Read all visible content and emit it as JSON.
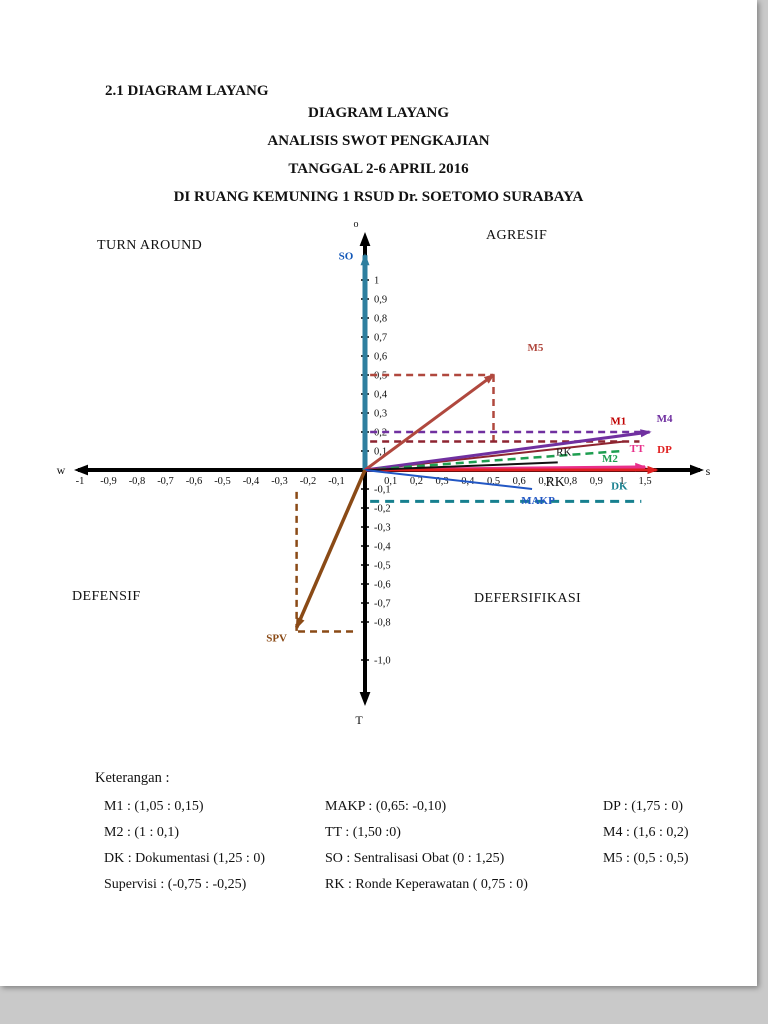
{
  "page": {
    "section_heading": "2.1 DIAGRAM LAYANG",
    "title_lines": [
      "DIAGRAM LAYANG",
      "ANALISIS SWOT PENGKAJIAN",
      "TANGGAL 2-6 APRIL 2016",
      "DI RUANG KEMUNING 1 RSUD Dr. SOETOMO SURABAYA"
    ]
  },
  "quadrants": {
    "top_left": "TURN AROUND",
    "top_right": "AGRESIF",
    "bottom_left": "DEFENSIF",
    "bottom_right": "DEFERSIFIKASI"
  },
  "chart_data": {
    "type": "scatter",
    "title": "Diagram Layang - Analisis SWOT Pengkajian",
    "x_range": [
      -1,
      1.75
    ],
    "y_range": [
      -1.0,
      1.25
    ],
    "grid": false,
    "axis_labels": {
      "top": "o",
      "bottom": "T",
      "left": "w",
      "right": "s"
    },
    "x_ticks_neg": [
      {
        "v": -1,
        "t": "-1"
      },
      {
        "v": -0.9,
        "t": "-0,9"
      },
      {
        "v": -0.8,
        "t": "-0,8"
      },
      {
        "v": -0.7,
        "t": "-0,7"
      },
      {
        "v": -0.6,
        "t": "-0,6"
      },
      {
        "v": -0.5,
        "t": "-0,5"
      },
      {
        "v": -0.4,
        "t": "-0,4"
      },
      {
        "v": -0.3,
        "t": "-0,3"
      },
      {
        "v": -0.2,
        "t": "-0,2"
      },
      {
        "v": -0.1,
        "t": "-0,1"
      }
    ],
    "x_ticks_pos": [
      {
        "v": 0.1,
        "t": "0,1"
      },
      {
        "v": 0.2,
        "t": "0,2"
      },
      {
        "v": 0.3,
        "t": "0,3"
      },
      {
        "v": 0.4,
        "t": "0,4"
      },
      {
        "v": 0.5,
        "t": "0,5"
      },
      {
        "v": 0.6,
        "t": "0,6"
      },
      {
        "v": 0.7,
        "t": "0,7"
      },
      {
        "v": 0.8,
        "t": "0,8"
      },
      {
        "v": 0.9,
        "t": "0,9"
      },
      {
        "v": 1,
        "t": "1"
      },
      {
        "v": 1.5,
        "t": "1,5"
      }
    ],
    "y_ticks_pos": [
      {
        "v": 1,
        "t": "1"
      },
      {
        "v": 0.9,
        "t": "0,9"
      },
      {
        "v": 0.8,
        "t": "0,8"
      },
      {
        "v": 0.7,
        "t": "0,7"
      },
      {
        "v": 0.6,
        "t": "0,6"
      },
      {
        "v": 0.5,
        "t": "0,5"
      },
      {
        "v": 0.4,
        "t": "0,4"
      },
      {
        "v": 0.3,
        "t": "0,3"
      },
      {
        "v": 0.2,
        "t": "0,2"
      },
      {
        "v": 0.1,
        "t": "0,1"
      }
    ],
    "y_ticks_neg": [
      {
        "v": -0.1,
        "t": "-0,1"
      },
      {
        "v": -0.2,
        "t": "-0,2"
      },
      {
        "v": -0.3,
        "t": "-0,3"
      },
      {
        "v": -0.4,
        "t": "-0,4"
      },
      {
        "v": -0.5,
        "t": "-0,5"
      },
      {
        "v": -0.6,
        "t": "-0,6"
      },
      {
        "v": -0.7,
        "t": "-0,7"
      },
      {
        "v": -0.8,
        "t": "-0,8"
      },
      {
        "v": -1.0,
        "t": "-1,0"
      }
    ],
    "points": [
      {
        "name": "M1",
        "x": 1.05,
        "y": 0.15
      },
      {
        "name": "M2",
        "x": 1.0,
        "y": 0.1
      },
      {
        "name": "DK",
        "desc": "Dokumentasi",
        "x": 1.25,
        "y": 0
      },
      {
        "name": "Supervisi",
        "x": -0.75,
        "y": -0.25
      },
      {
        "name": "MAKP",
        "x": 0.65,
        "y": -0.1
      },
      {
        "name": "TT",
        "x": 1.5,
        "y": 0
      },
      {
        "name": "SO",
        "desc": "Sentralisasi Obat",
        "x": 0,
        "y": 1.25
      },
      {
        "name": "RK",
        "desc": "Ronde Keperawatan",
        "x": 0.75,
        "y": 0
      },
      {
        "name": "DP",
        "x": 1.75,
        "y": 0
      },
      {
        "name": "M4",
        "x": 1.6,
        "y": 0.2
      },
      {
        "name": "M5",
        "x": 0.5,
        "y": 0.5
      }
    ],
    "vectors": [
      {
        "name": "SO",
        "label": "SO",
        "x": 0,
        "y": 1.13,
        "color": "#2e7f9f",
        "width": 5,
        "arrow": true,
        "head": 10,
        "label_dx": -19,
        "label_dy": 4,
        "label_color": "#1358b8",
        "projections": []
      },
      {
        "name": "M5",
        "label": "M5",
        "x": 0.5,
        "y": 0.5,
        "color": "#b0483e",
        "width": 3,
        "arrow": true,
        "label_dx": 42,
        "label_dy": -24,
        "label_color": "#b0483e",
        "projections": [
          {
            "x1": 0.02,
            "y1": 0.5,
            "x2": 0.5,
            "y2": 0.5
          },
          {
            "x1": 0.5,
            "y1": 0.5,
            "x2": 0.5,
            "y2": 0.14
          }
        ]
      },
      {
        "name": "M1",
        "label": "M1",
        "x": 1.05,
        "y": 0.15,
        "color": "#8e2430",
        "width": 2,
        "arrow": false,
        "label_dx": -6,
        "label_dy": -17,
        "label_color": "#c00000",
        "projections": [
          {
            "x1": 0.02,
            "y1": 0.15,
            "x2": 1.38,
            "y2": 0.15
          }
        ]
      },
      {
        "name": "M4",
        "label": "M4",
        "x": 1.6,
        "y": 0.2,
        "color": "#7030a0",
        "width": 3,
        "arrow": true,
        "label_dx": 15,
        "label_dy": -10,
        "label_color": "#7030a0",
        "projections": [
          {
            "x1": 0.02,
            "y1": 0.2,
            "x2": 1.45,
            "y2": 0.2
          }
        ]
      },
      {
        "name": "M2",
        "label": "M2",
        "x": 1.0,
        "y": 0.1,
        "color": "#1e9e50",
        "width": 2.5,
        "dash": "8,5",
        "arrow": false,
        "label_dx": -12,
        "label_dy": 11,
        "label_color": "#1e9e50",
        "projections": []
      },
      {
        "name": "TT",
        "label": "TT",
        "x": 1.5,
        "y": 0.015,
        "color": "#e8308a",
        "width": 3.5,
        "arrow": true,
        "label_dx": -8,
        "label_dy": -15,
        "label_color": "#e8308a",
        "projections": []
      },
      {
        "name": "DP",
        "label": "DP",
        "x": 1.75,
        "y": 0,
        "color": "#e02020",
        "width": 3,
        "arrow": true,
        "label_dx": 8,
        "label_dy": -17,
        "label_color": "#e02020",
        "projections": []
      },
      {
        "name": "RK",
        "label": "RK",
        "x": 0.75,
        "y": 0.04,
        "color": "#111111",
        "width": 2,
        "arrow": false,
        "label_bold": false,
        "label_dx": 6,
        "label_dy": -7,
        "label_color": "#111111",
        "projections": []
      },
      {
        "name": "DK",
        "label": "DK",
        "x1": 0.02,
        "y1": -0.165,
        "x": 1.42,
        "y": -0.165,
        "color": "#17808f",
        "width": 3,
        "dash": "9,6",
        "arrow": false,
        "label_dx": -22,
        "label_dy": -12,
        "label_color": "#17808f",
        "projections": []
      },
      {
        "name": "MAKP",
        "label": "MAKP",
        "x": 0.65,
        "y": -0.1,
        "color": "#2257c4",
        "width": 2,
        "arrow": false,
        "label_dx": 6,
        "label_dy": 15,
        "label_color": "#2257c4",
        "projections": []
      },
      {
        "name": "SPV",
        "label": "SPV",
        "x": -0.24,
        "y": -0.83,
        "color": "#8a4a16",
        "width": 3.5,
        "arrow": true,
        "label_dx": -20,
        "label_dy": 14,
        "label_color": "#8a4a16",
        "projections": [
          {
            "x1": -0.24,
            "y1": -0.115,
            "x2": -0.24,
            "y2": -0.85
          },
          {
            "x1": -0.235,
            "y1": -0.85,
            "x2": -0.03,
            "y2": -0.85
          }
        ]
      }
    ],
    "annotations": [
      {
        "text": "RK",
        "x": 0.74,
        "y": -0.085,
        "color": "#111111",
        "size": 14,
        "bold": false
      }
    ]
  },
  "legend": {
    "heading": "Keterangan :",
    "col1": [
      "M1 : (1,05 : 0,15)",
      "M2 : (1 : 0,1)",
      "DK : Dokumentasi (1,25 : 0)",
      "Supervisi : (-0,75 : -0,25)"
    ],
    "col2": [
      "MAKP : (0,65: -0,10)",
      "TT : (1,50 :0)",
      "SO : Sentralisasi Obat (0 : 1,25)",
      "RK : Ronde Keperawatan ( 0,75 : 0)"
    ],
    "col3": [
      "DP : (1,75 : 0)",
      "M4 : (1,6 : 0,2)",
      "M5 : (0,5 : 0,5)"
    ]
  }
}
